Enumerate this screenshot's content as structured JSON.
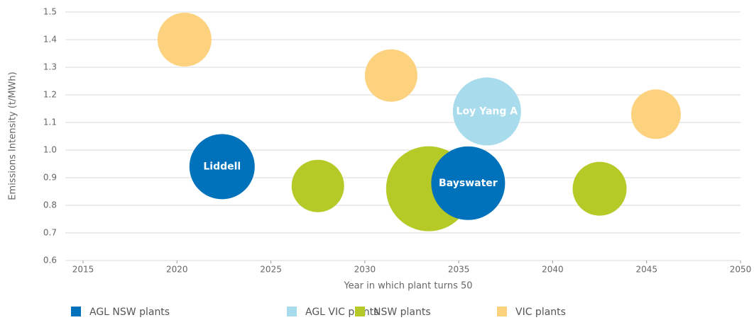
{
  "chart_data": {
    "type": "bubble",
    "x_label": "Year in which plant turns 50",
    "y_label": "Emissions Intensity (t/MWh)",
    "xlim": [
      2015,
      2050
    ],
    "xticks": [
      2015,
      2020,
      2025,
      2030,
      2035,
      2040,
      2045,
      2050
    ],
    "ylim": [
      0.6,
      1.5
    ],
    "yticks": [
      0.6,
      0.7,
      0.8,
      0.9,
      {
        "value": 1,
        "label": "1.0"
      },
      1.1,
      1.2,
      1.3,
      1.4,
      1.5
    ],
    "grid": true,
    "legend": "bottom",
    "series": [
      {
        "name": "AGL NSW plants",
        "color": "#0072bc",
        "x": [
          2022.4,
          2035.5
        ],
        "values": [
          0.94,
          0.88
        ],
        "sizes": [
          46,
          52
        ],
        "labels": [
          "Liddell",
          "Bayswater"
        ]
      },
      {
        "name": "AGL VIC plants",
        "color": "#a8dcec",
        "x": [
          2036.5
        ],
        "values": [
          1.14
        ],
        "sizes": [
          48
        ],
        "labels": [
          "Loy Yang A"
        ]
      },
      {
        "name": "NSW plants",
        "color": "#b5c927",
        "x": [
          2027.5,
          2033.4,
          2042.5
        ],
        "values": [
          0.87,
          0.86,
          0.86
        ],
        "sizes": [
          37,
          60,
          38
        ]
      },
      {
        "name": "VIC plants",
        "color": "#fdd27f",
        "x": [
          2020.4,
          2031.4,
          2045.5
        ],
        "values": [
          1.4,
          1.27,
          1.13
        ],
        "sizes": [
          38,
          37,
          35
        ]
      }
    ]
  }
}
